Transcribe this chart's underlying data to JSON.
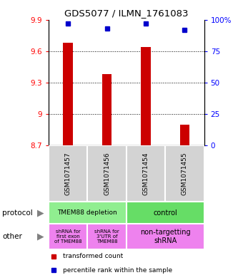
{
  "title": "GDS5077 / ILMN_1761083",
  "samples": [
    "GSM1071457",
    "GSM1071456",
    "GSM1071454",
    "GSM1071455"
  ],
  "red_values": [
    9.68,
    9.38,
    9.64,
    8.9
  ],
  "blue_values": [
    97,
    93,
    97,
    92
  ],
  "ylim_left": [
    8.7,
    9.9
  ],
  "ylim_right": [
    0,
    100
  ],
  "yticks_left": [
    8.7,
    9.0,
    9.3,
    9.6,
    9.9
  ],
  "yticks_right": [
    0,
    25,
    50,
    75,
    100
  ],
  "ytick_labels_left": [
    "8.7",
    "9",
    "9.3",
    "9.6",
    "9.9"
  ],
  "ytick_labels_right": [
    "0",
    "25",
    "50",
    "75",
    "100%"
  ],
  "bar_bottom": 8.7,
  "sample_bg_color": "#D3D3D3",
  "bar_color": "#CC0000",
  "dot_color": "#0000CC",
  "protocol_depletion_color": "#90EE90",
  "protocol_control_color": "#66DD66",
  "other_color": "#EE82EE",
  "grid_lines": [
    9.0,
    9.3,
    9.6
  ]
}
